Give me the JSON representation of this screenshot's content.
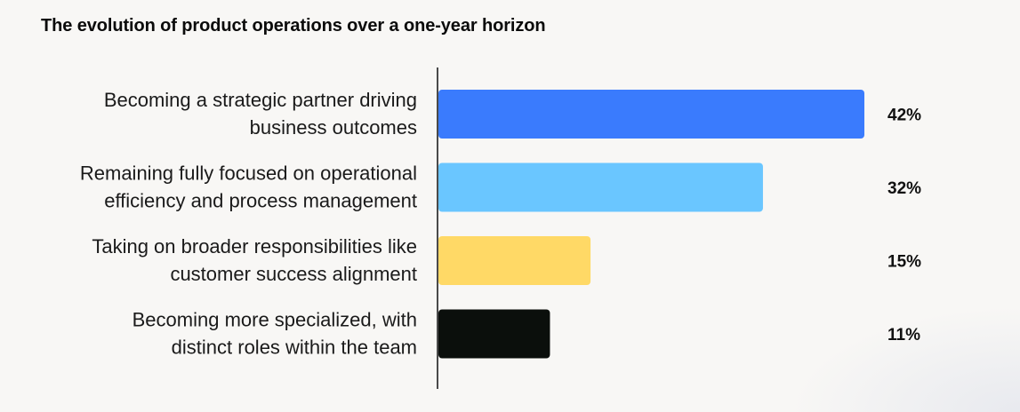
{
  "chart_data": {
    "type": "bar",
    "orientation": "horizontal",
    "title": "The evolution of product operations over a one-year horizon",
    "categories": [
      [
        "Becoming a strategic partner driving",
        "business outcomes"
      ],
      [
        "Remaining fully focused on operational",
        "efficiency and process management"
      ],
      [
        "Taking on broader responsibilities like",
        "customer success alignment"
      ],
      [
        "Becoming more specialized, with",
        "distinct roles within the team"
      ]
    ],
    "values": [
      42,
      32,
      15,
      11
    ],
    "value_labels": [
      "42%",
      "32%",
      "15%",
      "11%"
    ],
    "colors": [
      "#3a7bfd",
      "#6ac6ff",
      "#ffd966",
      "#0b0f0c"
    ],
    "xlim": [
      0,
      42
    ],
    "grid": false,
    "legend": "none"
  }
}
